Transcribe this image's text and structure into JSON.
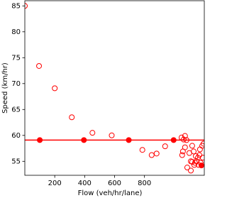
{
  "chart_data": {
    "type": "scatter",
    "xlabel": "Flow (veh/hr/lane)",
    "ylabel": "Speed (km/hr)",
    "xlim": [
      0,
      1200
    ],
    "ylim": [
      52.3,
      86
    ],
    "xticks": [
      200,
      400,
      600,
      800
    ],
    "yticks": [
      55,
      60,
      65,
      70,
      75,
      80,
      85
    ],
    "hline": 59.1,
    "hline_color": "#ff0000",
    "series": [
      {
        "marker": "hollow",
        "color": "#ff0000",
        "x": [
          0,
          95,
          200,
          314,
          452,
          581,
          786,
          848,
          881,
          938,
          1048,
          1062,
          1071,
          1081,
          1057,
          1052,
          1071,
          1086,
          1110,
          1100,
          1119,
          1129,
          1143,
          1119,
          1133,
          1148,
          1157,
          1167,
          1176,
          1186,
          1195,
          1190,
          1138,
          1162,
          1110,
          1171
        ],
        "values": [
          85,
          73.4,
          69.1,
          63.5,
          60.5,
          60.0,
          57.2,
          56.2,
          56.5,
          57.9,
          59.6,
          59.2,
          59.9,
          59.1,
          56.9,
          56.2,
          57.7,
          53.8,
          53.2,
          56.6,
          58.0,
          56.9,
          56.0,
          54.9,
          54.3,
          55.0,
          55.7,
          56.2,
          54.7,
          58.0,
          58.4,
          55.7,
          54.7,
          54.3,
          55.0,
          57.3
        ]
      },
      {
        "marker": "filled",
        "color": "#ff0000",
        "x": [
          100,
          395,
          695,
          995,
          1181
        ],
        "values": [
          59.1,
          59.1,
          59.1,
          59.1,
          54.2
        ]
      }
    ]
  }
}
